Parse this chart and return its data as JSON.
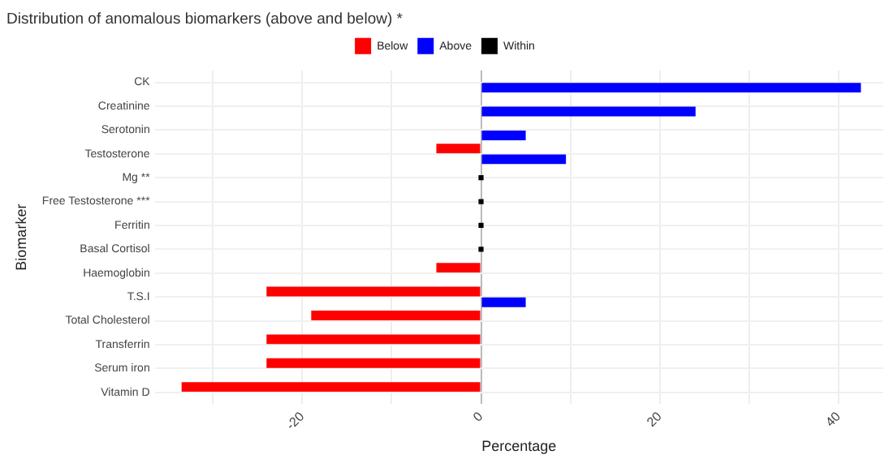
{
  "chart_data": {
    "type": "bar",
    "orientation": "horizontal",
    "title": "Distribution of anomalous biomarkers (above and below) *",
    "xlabel": "Percentage",
    "ylabel": "Biomarker",
    "categories": [
      "CK",
      "Creatinine",
      "Serotonin",
      "Testosterone",
      "Mg **",
      "Free Testosterone ***",
      "Ferritin",
      "Basal Cortisol",
      "Haemoglobin",
      "T.S.I",
      "Total Cholesterol",
      "Transferrin",
      "Serum iron",
      "Vitamin D"
    ],
    "series": [
      {
        "name": "Below",
        "color": "#ff0000",
        "values": [
          null,
          null,
          null,
          -5,
          null,
          null,
          null,
          null,
          -5,
          -24,
          -19,
          -24,
          -24,
          -33.5
        ]
      },
      {
        "name": "Above",
        "color": "#0000ff",
        "values": [
          42.5,
          24,
          5,
          9.5,
          null,
          null,
          null,
          null,
          null,
          5,
          null,
          null,
          null,
          null
        ]
      },
      {
        "name": "Within",
        "color": "#000000",
        "type": "scatter",
        "marker": "square",
        "values": [
          null,
          null,
          null,
          null,
          0,
          0,
          0,
          0,
          null,
          null,
          null,
          null,
          null,
          null
        ]
      }
    ],
    "xlim": [
      -36.5,
      45
    ],
    "xticks": [
      {
        "value": -30,
        "label": null
      },
      -20,
      {
        "value": -10,
        "label": null
      },
      0,
      {
        "value": 10,
        "label": null
      },
      20,
      {
        "value": 30,
        "label": null
      },
      40
    ],
    "grid": true,
    "legend": "top"
  }
}
